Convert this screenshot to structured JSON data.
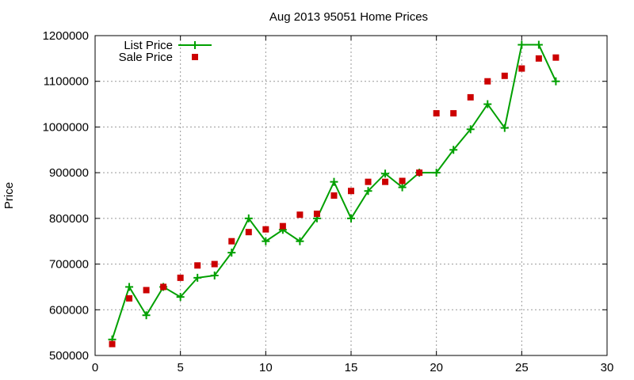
{
  "chart_data": {
    "type": "line",
    "title": "Aug 2013 95051 Home Prices",
    "xlabel": "",
    "ylabel": "Price",
    "xlim": [
      0,
      30
    ],
    "ylim": [
      500000,
      1200000
    ],
    "xticks": [
      0,
      5,
      10,
      15,
      20,
      25,
      30
    ],
    "yticks": [
      500000,
      600000,
      700000,
      800000,
      900000,
      1000000,
      1100000,
      1200000
    ],
    "grid": true,
    "legend_position": "top-left",
    "series": [
      {
        "name": "List Price",
        "style": "line-with-plus-markers",
        "color": "#00a000",
        "x": [
          1,
          2,
          3,
          4,
          5,
          6,
          7,
          8,
          9,
          10,
          11,
          12,
          13,
          14,
          15,
          16,
          17,
          18,
          19,
          20,
          21,
          22,
          23,
          24,
          25,
          26,
          27
        ],
        "y": [
          535000,
          650000,
          588000,
          650000,
          628000,
          670000,
          675000,
          725000,
          800000,
          750000,
          775000,
          750000,
          800000,
          880000,
          800000,
          860000,
          898000,
          868000,
          900000,
          900000,
          950000,
          995000,
          1050000,
          998000,
          1180000,
          1180000,
          1100000
        ]
      },
      {
        "name": "Sale Price",
        "style": "square-markers",
        "color": "#cc0000",
        "x": [
          1,
          2,
          3,
          4,
          5,
          6,
          7,
          8,
          9,
          10,
          11,
          12,
          13,
          14,
          15,
          16,
          17,
          18,
          19,
          20,
          21,
          22,
          23,
          24,
          25,
          26,
          27
        ],
        "y": [
          525000,
          625000,
          643000,
          650000,
          670000,
          697000,
          700000,
          750000,
          770000,
          776000,
          783000,
          808000,
          810000,
          850000,
          860000,
          880000,
          880000,
          882000,
          900000,
          1030000,
          1030000,
          1065000,
          1100000,
          1112000,
          1128000,
          1150000,
          1152000
        ]
      }
    ]
  }
}
